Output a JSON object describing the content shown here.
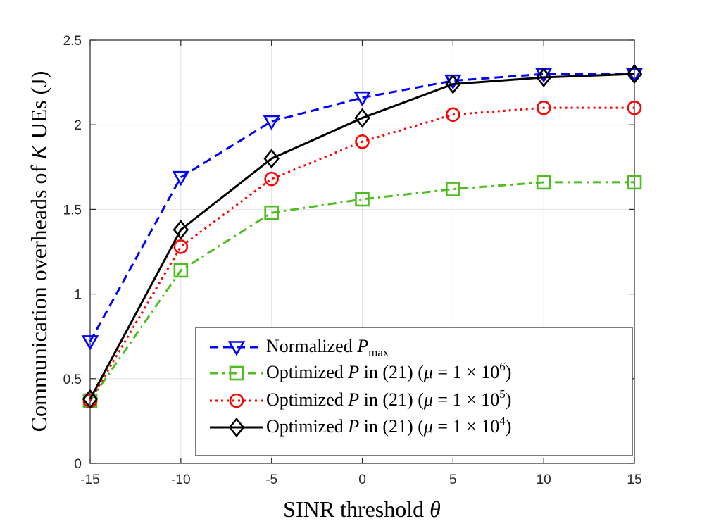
{
  "chart_data": {
    "type": "line",
    "title": "",
    "xlabel": "SINR threshold θ",
    "ylabel": "Communication overheads of K UEs (J)",
    "x": [
      -15,
      -10,
      -5,
      0,
      5,
      10,
      15
    ],
    "xticks": [
      "-15",
      "-10",
      "-5",
      "0",
      "5",
      "10",
      "15"
    ],
    "yticks": [
      "0",
      "0.5",
      "1",
      "1.5",
      "2",
      "2.5"
    ],
    "xlim": [
      -15,
      15
    ],
    "ylim": [
      0,
      2.5
    ],
    "grid": true,
    "legend_position": "bottom-right",
    "series": [
      {
        "name": "Normalized P_max",
        "legend_label": "Normalized Pmax",
        "color": "#0000ff",
        "line_style": "dashed",
        "marker": "triangle-down",
        "values": [
          0.72,
          1.69,
          2.02,
          2.16,
          2.26,
          2.3,
          2.3
        ]
      },
      {
        "name": "Optimized P in (21) (μ = 1 × 10^6)",
        "legend_label": "Optimized P in (21) (μ = 1 × 10^6)",
        "color": "#4dbe1e",
        "line_style": "dashdot",
        "marker": "square",
        "values": [
          0.37,
          1.14,
          1.48,
          1.56,
          1.62,
          1.66,
          1.66
        ]
      },
      {
        "name": "Optimized P in (21) (μ = 1 × 10^5)",
        "legend_label": "Optimized P in (21) (μ = 1 × 10^5)",
        "color": "#ff0000",
        "line_style": "dotted",
        "marker": "circle",
        "values": [
          0.37,
          1.28,
          1.68,
          1.9,
          2.06,
          2.1,
          2.1
        ]
      },
      {
        "name": "Optimized P in (21) (μ = 1 × 10^4)",
        "legend_label": "Optimized P in (21) (μ = 1 × 10^4)",
        "color": "#000000",
        "line_style": "solid",
        "marker": "diamond",
        "values": [
          0.38,
          1.38,
          1.8,
          2.04,
          2.24,
          2.28,
          2.3
        ]
      }
    ]
  }
}
